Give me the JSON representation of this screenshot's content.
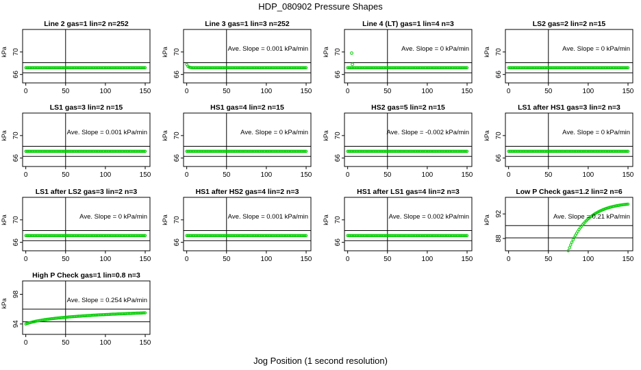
{
  "figure": {
    "title": "HDP_080902  Pressure Shapes",
    "xlabel": "Jog Position (1 second resolution)"
  },
  "chart_data": [
    {
      "type": "scatter",
      "title": "Line 2 gas=1 lin=2 n=252",
      "ylabel": "kPa",
      "ylim": [
        64.5,
        74
      ],
      "yticks": [
        66,
        70
      ],
      "xticks": [
        0,
        50,
        100,
        150
      ],
      "hlines": [
        66.3,
        68.1
      ],
      "vline": 50,
      "annotation": "",
      "color": "#00cc00",
      "curve": {
        "kind": "flat",
        "start": 67.2,
        "end": 67.2
      }
    },
    {
      "type": "scatter",
      "title": "Line 3 gas=1 lin=3 n=252",
      "ylabel": "kPa",
      "ylim": [
        64.5,
        74
      ],
      "yticks": [
        66,
        70
      ],
      "xticks": [
        0,
        50,
        100,
        150
      ],
      "hlines": [
        66.3,
        68.1
      ],
      "vline": 50,
      "annotation": "Ave. Slope = 0.001  kPa/min",
      "color": "#00cc00",
      "curve": {
        "kind": "initial_drop",
        "start": 67.8,
        "end": 67.2
      }
    },
    {
      "type": "scatter",
      "title": "Line 4 (LT) gas=1 lin=4 n=3",
      "ylabel": "kPa",
      "ylim": [
        64.5,
        74
      ],
      "yticks": [
        66,
        70
      ],
      "xticks": [
        0,
        50,
        100,
        150
      ],
      "hlines": [
        66.3,
        68.1
      ],
      "vline": 50,
      "annotation": "Ave. Slope = 0  kPa/min",
      "color": "#00cc00",
      "curve": {
        "kind": "outliers",
        "start": 67.2,
        "end": 67.2,
        "outliers": [
          [
            5,
            69.8
          ],
          [
            6,
            67.8
          ]
        ]
      }
    },
    {
      "type": "scatter",
      "title": "LS2 gas=2 lin=2 n=15",
      "ylabel": "kPa",
      "ylim": [
        64.5,
        74
      ],
      "yticks": [
        66,
        70
      ],
      "xticks": [
        0,
        50,
        100,
        150
      ],
      "hlines": [
        66.3,
        68.1
      ],
      "vline": 50,
      "annotation": "Ave. Slope = 0  kPa/min",
      "color": "#00cc00",
      "curve": {
        "kind": "flat",
        "start": 67.2,
        "end": 67.2
      }
    },
    {
      "type": "scatter",
      "title": "LS1 gas=3 lin=2 n=15",
      "ylabel": "kPa",
      "ylim": [
        64.5,
        74
      ],
      "yticks": [
        66,
        70
      ],
      "xticks": [
        0,
        50,
        100,
        150
      ],
      "hlines": [
        66.3,
        68.1
      ],
      "vline": 50,
      "annotation": "Ave. Slope = 0.001  kPa/min",
      "color": "#00cc00",
      "curve": {
        "kind": "flat",
        "start": 67.2,
        "end": 67.2
      }
    },
    {
      "type": "scatter",
      "title": "HS1 gas=4 lin=2 n=15",
      "ylabel": "kPa",
      "ylim": [
        64.5,
        74
      ],
      "yticks": [
        66,
        70
      ],
      "xticks": [
        0,
        50,
        100,
        150
      ],
      "hlines": [
        66.3,
        68.1
      ],
      "vline": 50,
      "annotation": "Ave. Slope = 0  kPa/min",
      "color": "#00cc00",
      "curve": {
        "kind": "flat",
        "start": 67.2,
        "end": 67.2
      }
    },
    {
      "type": "scatter",
      "title": "HS2 gas=5 lin=2 n=15",
      "ylabel": "kPa",
      "ylim": [
        64.5,
        74
      ],
      "yticks": [
        66,
        70
      ],
      "xticks": [
        0,
        50,
        100,
        150
      ],
      "hlines": [
        66.3,
        68.1
      ],
      "vline": 50,
      "annotation": "Ave. Slope = -0.002  kPa/min",
      "color": "#00cc00",
      "curve": {
        "kind": "flat",
        "start": 67.2,
        "end": 67.2
      }
    },
    {
      "type": "scatter",
      "title": "LS1 after HS1 gas=3 lin=2 n=3",
      "ylabel": "kPa",
      "ylim": [
        64.5,
        74
      ],
      "yticks": [
        66,
        70
      ],
      "xticks": [
        0,
        50,
        100,
        150
      ],
      "hlines": [
        66.3,
        68.1
      ],
      "vline": 50,
      "annotation": "Ave. Slope = 0  kPa/min",
      "color": "#00cc00",
      "curve": {
        "kind": "flat",
        "start": 67.2,
        "end": 67.2
      }
    },
    {
      "type": "scatter",
      "title": "LS1 after LS2 gas=3 lin=2 n=3",
      "ylabel": "kPa",
      "ylim": [
        64.5,
        74
      ],
      "yticks": [
        66,
        70
      ],
      "xticks": [
        0,
        50,
        100,
        150
      ],
      "hlines": [
        66.3,
        68.1
      ],
      "vline": 50,
      "annotation": "Ave. Slope = 0  kPa/min",
      "color": "#00cc00",
      "curve": {
        "kind": "flat",
        "start": 67.2,
        "end": 67.2
      }
    },
    {
      "type": "scatter",
      "title": "HS1 after HS2 gas=4 lin=2 n=3",
      "ylabel": "kPa",
      "ylim": [
        64.5,
        74
      ],
      "yticks": [
        66,
        70
      ],
      "xticks": [
        0,
        50,
        100,
        150
      ],
      "hlines": [
        66.3,
        68.1
      ],
      "vline": 50,
      "annotation": "Ave. Slope = 0.001  kPa/min",
      "color": "#00cc00",
      "curve": {
        "kind": "flat",
        "start": 67.2,
        "end": 67.2
      }
    },
    {
      "type": "scatter",
      "title": "HS1 after LS1 gas=4 lin=2 n=3",
      "ylabel": "kPa",
      "ylim": [
        64.5,
        74
      ],
      "yticks": [
        66,
        70
      ],
      "xticks": [
        0,
        50,
        100,
        150
      ],
      "hlines": [
        66.3,
        68.1
      ],
      "vline": 50,
      "annotation": "Ave. Slope = 0.002  kPa/min",
      "color": "#00cc00",
      "curve": {
        "kind": "flat",
        "start": 67.2,
        "end": 67.2
      }
    },
    {
      "type": "scatter",
      "title": "Low P Check gas=1.2 lin=2 n=6",
      "ylabel": "kPa",
      "ylim": [
        86,
        94.7
      ],
      "yticks": [
        88,
        92
      ],
      "xticks": [
        0,
        50,
        100,
        150
      ],
      "hlines": [
        88.1,
        90.1
      ],
      "vline": 50,
      "annotation": "Ave. Slope = 0.21  kPa/min",
      "color": "#00cc00",
      "curve": {
        "kind": "rise",
        "start": 86,
        "end": 93.6,
        "x_start": 75
      }
    },
    {
      "type": "scatter",
      "title": "High P Check gas=1 lin=0.8 n=3",
      "ylabel": "kPa",
      "ylim": [
        92.6,
        99.8
      ],
      "yticks": [
        94,
        98
      ],
      "xticks": [
        0,
        50,
        100,
        150
      ],
      "hlines": [
        94.3,
        96.0
      ],
      "vline": 50,
      "annotation": "Ave. Slope = 0.254  kPa/min",
      "color": "#00cc00",
      "curve": {
        "kind": "log_rise",
        "start": 94,
        "end": 95.5
      }
    }
  ]
}
